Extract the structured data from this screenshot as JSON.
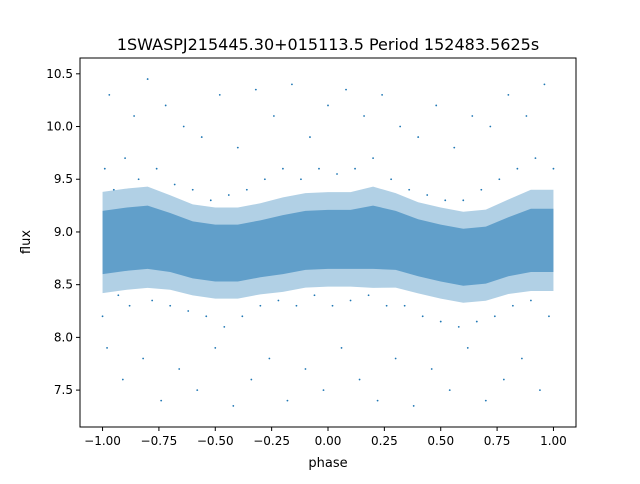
{
  "chart_data": {
    "type": "scatter",
    "title": "1SWASPJ215445.30+015113.5 Period 152483.5625s",
    "xlabel": "phase",
    "ylabel": "flux",
    "xlim": [
      -1.1,
      1.1
    ],
    "ylim": [
      7.15,
      10.65
    ],
    "grid": false,
    "color": "#1f77b4",
    "xticks": [
      -1.0,
      -0.75,
      -0.5,
      -0.25,
      0.0,
      0.25,
      0.5,
      0.75,
      1.0
    ],
    "xtick_labels": [
      "−1.00",
      "−0.75",
      "−0.50",
      "−0.25",
      "0.00",
      "0.25",
      "0.50",
      "0.75",
      "1.00"
    ],
    "yticks": [
      7.5,
      8.0,
      8.5,
      9.0,
      9.5,
      10.0,
      10.5
    ],
    "ytick_labels": [
      "7.5",
      "8.0",
      "8.5",
      "9.0",
      "9.5",
      "10.0",
      "10.5"
    ],
    "binned_trend": {
      "phase": [
        -1.0,
        -0.9,
        -0.8,
        -0.7,
        -0.6,
        -0.5,
        -0.4,
        -0.3,
        -0.2,
        -0.1,
        0.0,
        0.1,
        0.2,
        0.3,
        0.4,
        0.5,
        0.6,
        0.7,
        0.8,
        0.9,
        1.0
      ],
      "median": [
        8.9,
        8.93,
        8.95,
        8.9,
        8.83,
        8.8,
        8.8,
        8.84,
        8.88,
        8.92,
        8.93,
        8.93,
        8.95,
        8.92,
        8.85,
        8.8,
        8.76,
        8.78,
        8.86,
        8.92,
        8.92
      ],
      "spread": [
        0.3,
        0.3,
        0.3,
        0.28,
        0.27,
        0.27,
        0.27,
        0.27,
        0.28,
        0.28,
        0.28,
        0.28,
        0.3,
        0.28,
        0.27,
        0.27,
        0.27,
        0.27,
        0.28,
        0.3,
        0.3
      ]
    },
    "points": [
      [
        -1.0,
        8.2
      ],
      [
        -0.99,
        9.6
      ],
      [
        -0.98,
        7.9
      ],
      [
        -0.97,
        10.3
      ],
      [
        -0.95,
        9.4
      ],
      [
        -0.93,
        8.4
      ],
      [
        -0.91,
        7.6
      ],
      [
        -0.9,
        9.7
      ],
      [
        -0.88,
        8.3
      ],
      [
        -0.86,
        10.1
      ],
      [
        -0.84,
        9.5
      ],
      [
        -0.82,
        7.8
      ],
      [
        -0.8,
        10.45
      ],
      [
        -0.78,
        8.35
      ],
      [
        -0.76,
        9.6
      ],
      [
        -0.74,
        7.4
      ],
      [
        -0.72,
        10.2
      ],
      [
        -0.7,
        8.3
      ],
      [
        -0.68,
        9.45
      ],
      [
        -0.66,
        7.7
      ],
      [
        -0.64,
        10.0
      ],
      [
        -0.62,
        8.25
      ],
      [
        -0.6,
        9.4
      ],
      [
        -0.58,
        7.5
      ],
      [
        -0.56,
        9.9
      ],
      [
        -0.54,
        8.2
      ],
      [
        -0.52,
        9.3
      ],
      [
        -0.5,
        7.9
      ],
      [
        -0.48,
        10.3
      ],
      [
        -0.46,
        8.1
      ],
      [
        -0.44,
        9.35
      ],
      [
        -0.42,
        7.35
      ],
      [
        -0.4,
        9.8
      ],
      [
        -0.38,
        8.2
      ],
      [
        -0.36,
        9.4
      ],
      [
        -0.34,
        7.6
      ],
      [
        -0.32,
        10.35
      ],
      [
        -0.3,
        8.3
      ],
      [
        -0.28,
        9.5
      ],
      [
        -0.26,
        7.8
      ],
      [
        -0.24,
        10.1
      ],
      [
        -0.22,
        8.35
      ],
      [
        -0.2,
        9.6
      ],
      [
        -0.18,
        7.4
      ],
      [
        -0.16,
        10.4
      ],
      [
        -0.14,
        8.3
      ],
      [
        -0.12,
        9.5
      ],
      [
        -0.1,
        7.7
      ],
      [
        -0.08,
        9.9
      ],
      [
        -0.06,
        8.4
      ],
      [
        -0.04,
        9.6
      ],
      [
        -0.02,
        7.5
      ],
      [
        0.0,
        10.2
      ],
      [
        0.02,
        8.3
      ],
      [
        0.04,
        9.55
      ],
      [
        0.06,
        7.9
      ],
      [
        0.08,
        10.35
      ],
      [
        0.1,
        8.35
      ],
      [
        0.12,
        9.6
      ],
      [
        0.14,
        7.6
      ],
      [
        0.16,
        10.1
      ],
      [
        0.18,
        8.4
      ],
      [
        0.2,
        9.7
      ],
      [
        0.22,
        7.4
      ],
      [
        0.24,
        10.3
      ],
      [
        0.26,
        8.3
      ],
      [
        0.28,
        9.5
      ],
      [
        0.3,
        7.8
      ],
      [
        0.32,
        10.0
      ],
      [
        0.34,
        8.3
      ],
      [
        0.36,
        9.4
      ],
      [
        0.38,
        7.35
      ],
      [
        0.4,
        9.9
      ],
      [
        0.42,
        8.2
      ],
      [
        0.44,
        9.35
      ],
      [
        0.46,
        7.7
      ],
      [
        0.48,
        10.2
      ],
      [
        0.5,
        8.15
      ],
      [
        0.52,
        9.3
      ],
      [
        0.54,
        7.5
      ],
      [
        0.56,
        9.8
      ],
      [
        0.58,
        8.1
      ],
      [
        0.6,
        9.3
      ],
      [
        0.62,
        7.9
      ],
      [
        0.64,
        10.1
      ],
      [
        0.66,
        8.15
      ],
      [
        0.68,
        9.4
      ],
      [
        0.7,
        7.4
      ],
      [
        0.72,
        10.0
      ],
      [
        0.74,
        8.2
      ],
      [
        0.76,
        9.5
      ],
      [
        0.78,
        7.6
      ],
      [
        0.8,
        10.3
      ],
      [
        0.82,
        8.3
      ],
      [
        0.84,
        9.6
      ],
      [
        0.86,
        7.8
      ],
      [
        0.88,
        10.1
      ],
      [
        0.9,
        8.35
      ],
      [
        0.92,
        9.7
      ],
      [
        0.94,
        7.5
      ],
      [
        0.96,
        10.4
      ],
      [
        0.98,
        8.2
      ],
      [
        1.0,
        9.6
      ]
    ]
  }
}
